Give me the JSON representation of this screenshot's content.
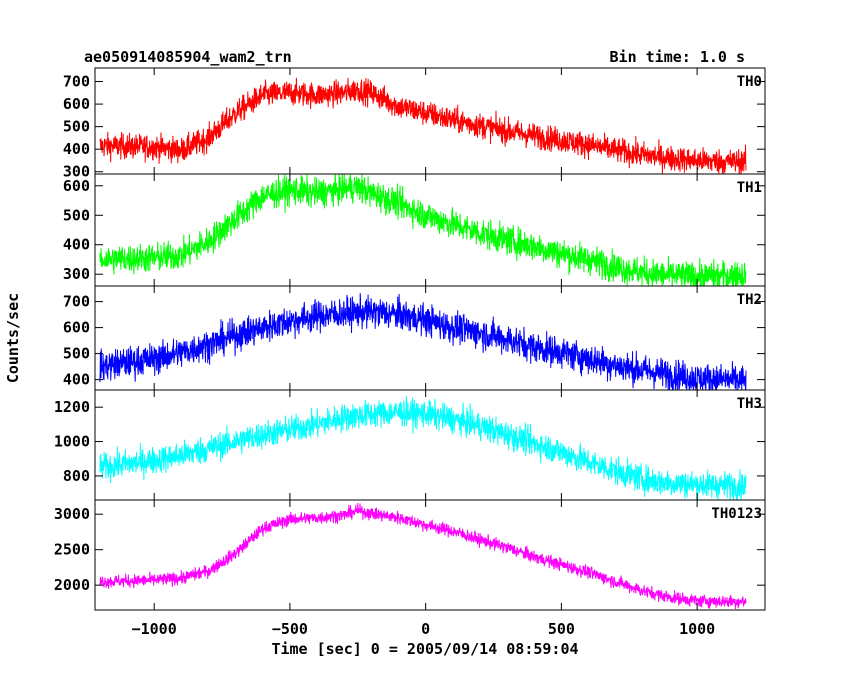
{
  "chart_data": {
    "type": "line",
    "title": "ae050914085904_wam2_trn",
    "bin_time": "Bin time: 1.0 s",
    "xlabel": "Time [sec] 0 = 2005/09/14 08:59:04",
    "ylabel": "Counts/sec",
    "xlim": [
      -1218,
      1250
    ],
    "x_ticks": [
      -1000,
      -500,
      0,
      500,
      1000
    ],
    "x_tick_labels": [
      "−1000",
      "−500",
      "0",
      "500",
      "1000"
    ],
    "x_data_range": [
      -1200,
      1180
    ],
    "grid": false,
    "panels": [
      {
        "name": "TH0",
        "color": "#ff0000",
        "ylim": [
          290,
          760
        ],
        "y_ticks": [
          300,
          400,
          500,
          600,
          700
        ],
        "noise": 28,
        "profile": [
          [
            -1200,
            415
          ],
          [
            -1000,
            410
          ],
          [
            -900,
            395
          ],
          [
            -800,
            450
          ],
          [
            -700,
            560
          ],
          [
            -600,
            640
          ],
          [
            -500,
            650
          ],
          [
            -400,
            640
          ],
          [
            -300,
            650
          ],
          [
            -250,
            665
          ],
          [
            -200,
            650
          ],
          [
            -100,
            590
          ],
          [
            0,
            560
          ],
          [
            100,
            530
          ],
          [
            200,
            505
          ],
          [
            300,
            480
          ],
          [
            400,
            460
          ],
          [
            500,
            440
          ],
          [
            600,
            420
          ],
          [
            700,
            395
          ],
          [
            800,
            375
          ],
          [
            900,
            360
          ],
          [
            1000,
            350
          ],
          [
            1100,
            345
          ],
          [
            1180,
            345
          ]
        ]
      },
      {
        "name": "TH1",
        "color": "#00ff00",
        "ylim": [
          260,
          640
        ],
        "y_ticks": [
          300,
          400,
          500,
          600
        ],
        "noise": 25,
        "profile": [
          [
            -1200,
            350
          ],
          [
            -1000,
            355
          ],
          [
            -900,
            365
          ],
          [
            -800,
            410
          ],
          [
            -700,
            490
          ],
          [
            -600,
            565
          ],
          [
            -500,
            585
          ],
          [
            -400,
            575
          ],
          [
            -300,
            590
          ],
          [
            -250,
            595
          ],
          [
            -200,
            575
          ],
          [
            -100,
            540
          ],
          [
            0,
            500
          ],
          [
            100,
            470
          ],
          [
            200,
            440
          ],
          [
            300,
            415
          ],
          [
            400,
            395
          ],
          [
            500,
            370
          ],
          [
            600,
            350
          ],
          [
            700,
            325
          ],
          [
            800,
            305
          ],
          [
            900,
            295
          ],
          [
            1000,
            292
          ],
          [
            1100,
            295
          ],
          [
            1180,
            300
          ]
        ]
      },
      {
        "name": "TH2",
        "color": "#0000ff",
        "ylim": [
          360,
          760
        ],
        "y_ticks": [
          400,
          500,
          600,
          700
        ],
        "noise": 30,
        "profile": [
          [
            -1200,
            450
          ],
          [
            -1000,
            480
          ],
          [
            -900,
            505
          ],
          [
            -800,
            535
          ],
          [
            -700,
            570
          ],
          [
            -600,
            600
          ],
          [
            -500,
            625
          ],
          [
            -400,
            645
          ],
          [
            -300,
            655
          ],
          [
            -200,
            660
          ],
          [
            -100,
            650
          ],
          [
            0,
            630
          ],
          [
            100,
            600
          ],
          [
            200,
            580
          ],
          [
            300,
            555
          ],
          [
            400,
            525
          ],
          [
            500,
            505
          ],
          [
            600,
            480
          ],
          [
            700,
            455
          ],
          [
            800,
            435
          ],
          [
            900,
            420
          ],
          [
            1000,
            405
          ],
          [
            1100,
            400
          ],
          [
            1180,
            395
          ]
        ]
      },
      {
        "name": "TH3",
        "color": "#00ffff",
        "ylim": [
          660,
          1300
        ],
        "y_ticks": [
          800,
          1000,
          1200
        ],
        "noise": 40,
        "profile": [
          [
            -1200,
            850
          ],
          [
            -1000,
            890
          ],
          [
            -900,
            920
          ],
          [
            -800,
            960
          ],
          [
            -700,
            1000
          ],
          [
            -600,
            1040
          ],
          [
            -500,
            1070
          ],
          [
            -400,
            1100
          ],
          [
            -300,
            1140
          ],
          [
            -200,
            1160
          ],
          [
            -100,
            1170
          ],
          [
            0,
            1160
          ],
          [
            100,
            1130
          ],
          [
            200,
            1090
          ],
          [
            300,
            1040
          ],
          [
            400,
            990
          ],
          [
            500,
            940
          ],
          [
            600,
            880
          ],
          [
            700,
            830
          ],
          [
            800,
            780
          ],
          [
            900,
            760
          ],
          [
            1000,
            750
          ],
          [
            1100,
            745
          ],
          [
            1180,
            745
          ]
        ]
      },
      {
        "name": "TH0123",
        "color": "#ff00ff",
        "ylim": [
          1650,
          3200
        ],
        "y_ticks": [
          2000,
          2500,
          3000
        ],
        "noise": 45,
        "profile": [
          [
            -1200,
            2050
          ],
          [
            -1000,
            2070
          ],
          [
            -900,
            2100
          ],
          [
            -800,
            2200
          ],
          [
            -700,
            2450
          ],
          [
            -600,
            2800
          ],
          [
            -500,
            2930
          ],
          [
            -400,
            2950
          ],
          [
            -300,
            2990
          ],
          [
            -250,
            3050
          ],
          [
            -200,
            3010
          ],
          [
            -100,
            2950
          ],
          [
            0,
            2850
          ],
          [
            100,
            2760
          ],
          [
            200,
            2640
          ],
          [
            300,
            2530
          ],
          [
            400,
            2400
          ],
          [
            500,
            2290
          ],
          [
            600,
            2180
          ],
          [
            700,
            2050
          ],
          [
            800,
            1920
          ],
          [
            900,
            1830
          ],
          [
            1000,
            1780
          ],
          [
            1100,
            1770
          ],
          [
            1180,
            1770
          ]
        ]
      }
    ]
  }
}
